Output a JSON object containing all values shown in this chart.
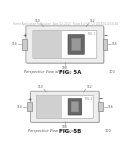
{
  "header_text": "Patent Application Publication   Aug. 22, 2013   Sheet 6 of 50   US 2013/0212541 A1",
  "bg_color": "#ffffff",
  "line_color": "#888888",
  "dark_color": "#222222",
  "text_color": "#555555",
  "gray_fill": "#d8d8d8",
  "light_fill": "#eeeeee",
  "white": "#ffffff",
  "fig5a": {
    "label": "FIG. 5A",
    "ref": "100",
    "caption": "Perspective View of Device",
    "ox": 14,
    "oy": 9,
    "ow": 98,
    "oh": 46
  },
  "fig5b": {
    "label": "FIG. 5B",
    "ref": "100",
    "caption": "Perspective View of Device",
    "ox": 20,
    "oy": 94,
    "ow": 86,
    "oh": 38
  }
}
